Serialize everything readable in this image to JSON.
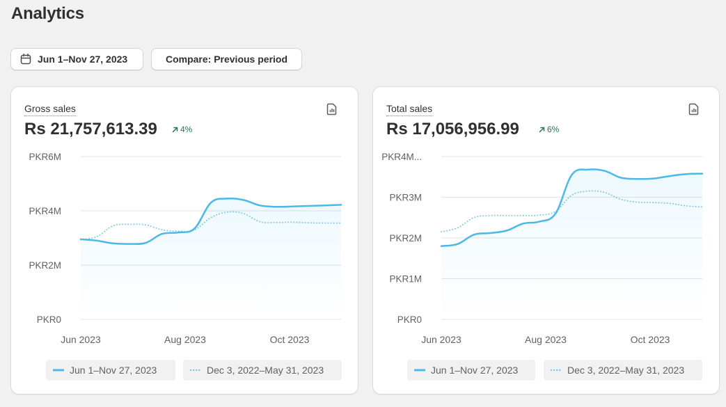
{
  "page": {
    "title": "Analytics"
  },
  "toolbar": {
    "date_range_label": "Jun 1–Nov 27, 2023",
    "compare_label": "Compare: Previous period",
    "date_icon": "calendar-icon"
  },
  "colors": {
    "primary_series": "#4cb8e8",
    "comparison_series": "#7fcdee",
    "positive_delta": "#1f7a4d"
  },
  "cards": [
    {
      "metric_label": "Gross sales",
      "value": "Rs 21,757,613.39",
      "delta": "4%",
      "delta_direction": "up",
      "export_icon": "report-icon",
      "legend": {
        "current": "Jun 1–Nov 27, 2023",
        "previous": "Dec 3, 2022–May 31, 2023"
      }
    },
    {
      "metric_label": "Total sales",
      "value": "Rs 17,056,956.99",
      "delta": "6%",
      "delta_direction": "up",
      "export_icon": "report-icon",
      "legend": {
        "current": "Jun 1–Nov 27, 2023",
        "previous": "Dec 3, 2022–May 31, 2023"
      }
    }
  ],
  "chart_data": [
    {
      "type": "line",
      "title": "Gross sales",
      "y_ticks": [
        "PKR0",
        "PKR2M",
        "PKR4M",
        "PKR6M"
      ],
      "ylim": [
        0,
        6000000
      ],
      "x_ticks": [
        "Jun 2023",
        "Aug 2023",
        "Oct 2023"
      ],
      "grid": true,
      "legend_position": "bottom",
      "series": [
        {
          "name": "Jun 1–Nov 27, 2023",
          "style": "solid",
          "fill": true,
          "values": [
            2950000,
            2900000,
            2800000,
            2780000,
            2820000,
            3150000,
            3200000,
            3350000,
            4300000,
            4450000,
            4400000,
            4200000,
            4150000,
            4160000,
            4180000,
            4200000,
            4220000
          ]
        },
        {
          "name": "Dec 3, 2022–May 31, 2023",
          "style": "dotted",
          "fill": false,
          "values": [
            2930000,
            3050000,
            3450000,
            3500000,
            3480000,
            3300000,
            3250000,
            3300000,
            3750000,
            3950000,
            3900000,
            3600000,
            3570000,
            3580000,
            3560000,
            3550000,
            3550000
          ]
        }
      ]
    },
    {
      "type": "line",
      "title": "Total sales",
      "y_ticks": [
        "PKR0",
        "PKR1M",
        "PKR2M",
        "PKR3M",
        "PKR4M..."
      ],
      "ylim": [
        0,
        4000000
      ],
      "x_ticks": [
        "Jun 2023",
        "Aug 2023",
        "Oct 2023"
      ],
      "grid": true,
      "legend_position": "bottom",
      "series": [
        {
          "name": "Jun 1–Nov 27, 2023",
          "style": "solid",
          "fill": true,
          "values": [
            1800000,
            1850000,
            2080000,
            2120000,
            2180000,
            2350000,
            2400000,
            2600000,
            3550000,
            3680000,
            3650000,
            3480000,
            3450000,
            3460000,
            3520000,
            3570000,
            3580000
          ]
        },
        {
          "name": "Dec 3, 2022–May 31, 2023",
          "style": "dotted",
          "fill": false,
          "values": [
            2150000,
            2250000,
            2500000,
            2550000,
            2550000,
            2550000,
            2560000,
            2650000,
            3050000,
            3150000,
            3120000,
            2950000,
            2880000,
            2870000,
            2850000,
            2790000,
            2760000
          ]
        }
      ]
    }
  ]
}
